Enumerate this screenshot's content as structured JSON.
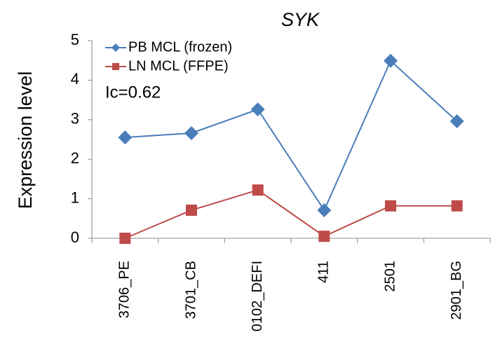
{
  "chart_data": {
    "type": "line",
    "title": "SYK",
    "ylabel": "Expression level",
    "annotation": "Ic=0.62",
    "categories": [
      "3706_PE",
      "3701_CB",
      "0102_DEFI",
      "411",
      "2501",
      "2901_BG"
    ],
    "series": [
      {
        "name": "PB MCL (frozen)",
        "color": "#4a7ebb",
        "marker": "diamond",
        "values": [
          2.55,
          2.66,
          3.26,
          0.71,
          4.49,
          2.96
        ]
      },
      {
        "name": "LN MCL (FFPE)",
        "color": "#be4b48",
        "marker": "square",
        "values": [
          0,
          0.71,
          1.22,
          0.05,
          0.82,
          0.82
        ]
      }
    ],
    "ylim": [
      0,
      5
    ],
    "yticks": [
      0,
      1,
      2,
      3,
      4,
      5
    ],
    "legend": "upper left"
  }
}
